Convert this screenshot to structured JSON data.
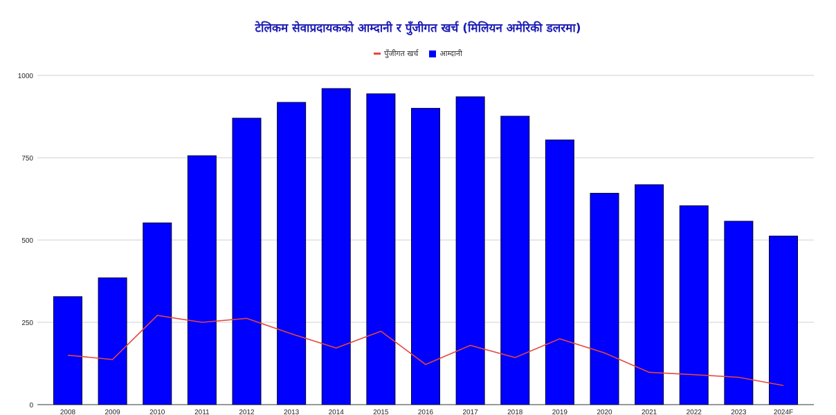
{
  "chart_data": {
    "type": "bar",
    "title": "टेलिकम सेवाप्रदायकको आम्दानी र पुँजीगत खर्च (मिलियन अमेरिकी डलरमा)",
    "categories": [
      "2008",
      "2009",
      "2010",
      "2011",
      "2012",
      "2013",
      "2014",
      "2015",
      "2016",
      "2017",
      "2018",
      "2019",
      "2020",
      "2021",
      "2022",
      "2023",
      "2024F"
    ],
    "series": [
      {
        "name": "आम्दानी",
        "type": "bar",
        "color": "#0000ff",
        "values": [
          328,
          385,
          552,
          756,
          870,
          918,
          960,
          944,
          900,
          935,
          876,
          804,
          642,
          668,
          604,
          557,
          512
        ]
      },
      {
        "name": "पुँजीगत खर्च",
        "type": "line",
        "color": "#e4473c",
        "values": [
          150,
          137,
          271,
          250,
          262,
          215,
          172,
          223,
          122,
          180,
          143,
          200,
          157,
          98,
          91,
          83,
          58
        ]
      }
    ],
    "legend_order": [
      "पुँजीगत खर्च",
      "आम्दानी"
    ],
    "legend_position": "top-center",
    "ylim": [
      0,
      1000
    ],
    "yticks": [
      0,
      250,
      500,
      750,
      1000
    ],
    "xlabel": "",
    "ylabel": "",
    "grid": true
  }
}
